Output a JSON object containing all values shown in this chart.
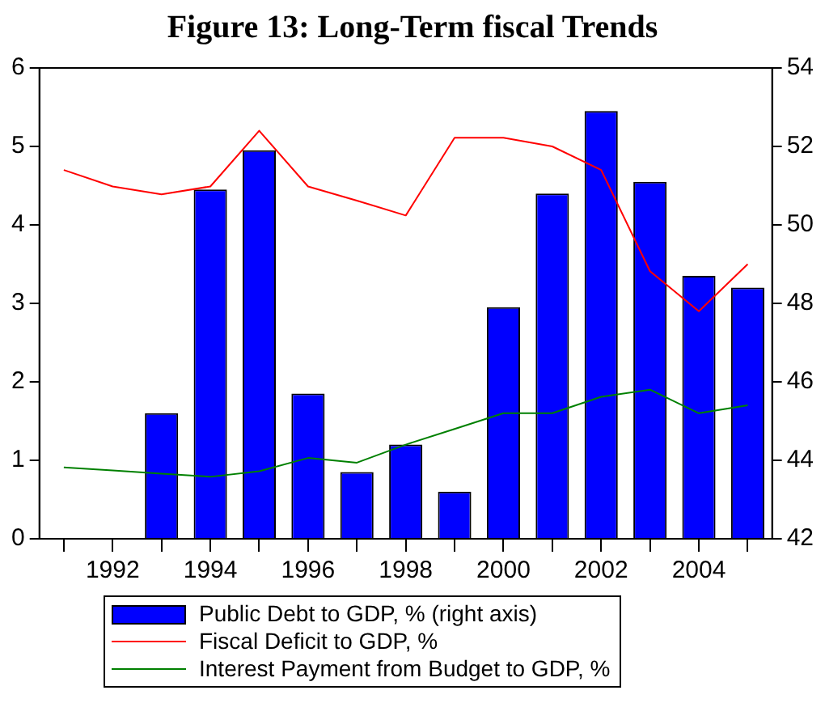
{
  "chart_data": {
    "type": "bar",
    "title": "Figure 13: Long-Term fiscal Trends",
    "categories": [
      null,
      "1992",
      null,
      "1994",
      null,
      "1996",
      null,
      "1998",
      null,
      "2000",
      null,
      "2002",
      null,
      "2004",
      null
    ],
    "series": [
      {
        "name": "Public Debt to GDP, % (right axis)",
        "axis": "y2",
        "color": "#0000ff",
        "values": [
          null,
          null,
          45.2,
          50.9,
          51.9,
          45.7,
          43.7,
          44.4,
          43.2,
          47.9,
          50.8,
          52.9,
          51.1,
          48.7,
          48.4
        ]
      },
      {
        "name": "Fiscal Deficit to GDP, %",
        "type": "line",
        "color": "#ff0000",
        "values": [
          4.7,
          4.49,
          4.39,
          4.49,
          5.2,
          4.49,
          4.31,
          4.12,
          5.11,
          5.11,
          5.0,
          4.7,
          3.41,
          2.9,
          3.5
        ]
      },
      {
        "name": "Interest Payment from Budget to GDP, %",
        "type": "line",
        "color": "#008000",
        "values": [
          0.91,
          0.87,
          0.83,
          0.79,
          0.86,
          1.03,
          0.97,
          1.2,
          1.4,
          1.6,
          1.6,
          1.81,
          1.9,
          1.6,
          1.7
        ]
      }
    ],
    "ylim": [
      0,
      6
    ],
    "yticks": [
      0,
      1,
      2,
      3,
      4,
      5,
      6
    ],
    "y2lim": [
      42,
      54
    ],
    "y2ticks": [
      42,
      44,
      46,
      48,
      50,
      52,
      54
    ],
    "grid": false,
    "legend": "bottom",
    "marker": "none",
    "line_style": "solid"
  }
}
